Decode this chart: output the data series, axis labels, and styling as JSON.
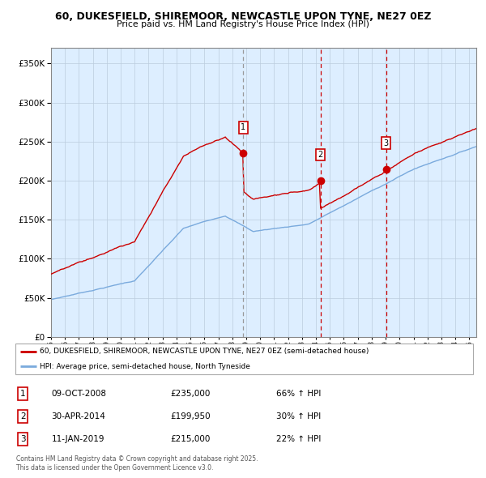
{
  "title": "60, DUKESFIELD, SHIREMOOR, NEWCASTLE UPON TYNE, NE27 0EZ",
  "subtitle": "Price paid vs. HM Land Registry's House Price Index (HPI)",
  "red_label": "60, DUKESFIELD, SHIREMOOR, NEWCASTLE UPON TYNE, NE27 0EZ (semi-detached house)",
  "blue_label": "HPI: Average price, semi-detached house, North Tyneside",
  "footer": "Contains HM Land Registry data © Crown copyright and database right 2025.\nThis data is licensed under the Open Government Licence v3.0.",
  "sales": [
    {
      "num": 1,
      "date": "09-OCT-2008",
      "price": 235000,
      "hpi_pct": "66% ↑ HPI"
    },
    {
      "num": 2,
      "date": "30-APR-2014",
      "price": 199950,
      "hpi_pct": "30% ↑ HPI"
    },
    {
      "num": 3,
      "date": "11-JAN-2019",
      "price": 215000,
      "hpi_pct": "22% ↑ HPI"
    }
  ],
  "sale_dates_decimal": [
    2008.77,
    2014.33,
    2019.03
  ],
  "sale_prices": [
    235000,
    199950,
    215000
  ],
  "red_color": "#cc0000",
  "blue_color": "#7aaadd",
  "bg_color": "#ddeeff",
  "grid_color": "#bbccdd",
  "ylim": [
    0,
    370000
  ],
  "xlim_start": 1995.0,
  "xlim_end": 2025.5
}
